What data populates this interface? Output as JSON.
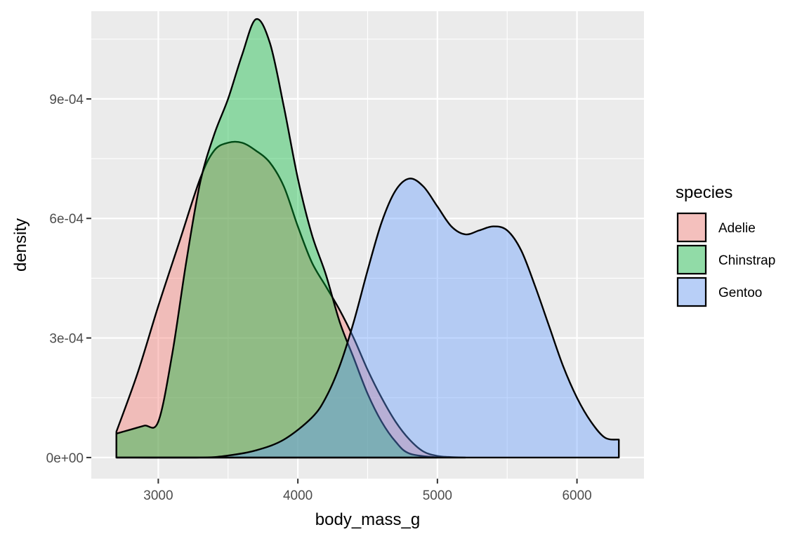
{
  "chart_data": {
    "type": "area",
    "xlabel": "body_mass_g",
    "ylabel": "density",
    "xlim": [
      2520,
      6480
    ],
    "ylim": [
      -5.3e-05,
      0.00112
    ],
    "x_ticks": [
      3000,
      4000,
      5000,
      6000
    ],
    "x_tick_labels": [
      "3000",
      "4000",
      "5000",
      "6000"
    ],
    "y_ticks": [
      0,
      0.0003,
      0.0006,
      0.0009
    ],
    "y_tick_labels": [
      "0e+00",
      "3e-04",
      "6e-04",
      "9e-04"
    ],
    "x_minor_ticks": [
      2500,
      3500,
      4500,
      5500,
      6500
    ],
    "y_minor_ticks": [
      0.00015,
      0.00045,
      0.00075,
      0.00105
    ],
    "grid": true,
    "background": "#EBEBEB",
    "legend": {
      "title": "species",
      "position": "right"
    },
    "series": [
      {
        "name": "Adelie",
        "color": "#F8766D",
        "x": [
          2700,
          2850,
          3000,
          3150,
          3300,
          3400,
          3500,
          3600,
          3700,
          3800,
          3900,
          4000,
          4100,
          4200,
          4300,
          4400,
          4500,
          4600,
          4700,
          4800,
          4900,
          5000,
          5100,
          5200
        ],
        "values": [
          6.5e-05,
          0.00021,
          0.00038,
          0.00054,
          0.0007,
          0.00077,
          0.00079,
          0.00079,
          0.00077,
          0.00074,
          0.00068,
          0.00058,
          0.00049,
          0.00043,
          0.00037,
          0.0003,
          0.00022,
          0.00015,
          9e-05,
          4.5e-05,
          1.5e-05,
          4e-06,
          1e-06,
          0
        ]
      },
      {
        "name": "Chinstrap",
        "color": "#00BA38",
        "x": [
          2700,
          2800,
          2900,
          3000,
          3100,
          3200,
          3300,
          3400,
          3500,
          3600,
          3700,
          3800,
          3900,
          4000,
          4100,
          4200,
          4300,
          4400,
          4500,
          4600,
          4700,
          4800,
          5000
        ],
        "values": [
          6e-05,
          7e-05,
          8e-05,
          9e-05,
          0.00026,
          0.00049,
          0.00069,
          0.00081,
          0.0009,
          0.00101,
          0.0011,
          0.00104,
          0.00088,
          0.0007,
          0.00056,
          0.00046,
          0.00034,
          0.00025,
          0.00016,
          9e-05,
          4e-05,
          1e-05,
          0
        ]
      },
      {
        "name": "Gentoo",
        "color": "#619CFF",
        "x": [
          2700,
          3300,
          3500,
          3700,
          3900,
          4100,
          4200,
          4300,
          4400,
          4500,
          4600,
          4700,
          4800,
          4900,
          5000,
          5100,
          5200,
          5300,
          5400,
          5500,
          5600,
          5700,
          5800,
          5900,
          6000,
          6100,
          6200,
          6300
        ],
        "values": [
          0,
          0,
          5e-06,
          1.8e-05,
          4.5e-05,
          0.0001,
          0.00015,
          0.00023,
          0.00034,
          0.00047,
          0.00059,
          0.00067,
          0.0007,
          0.00068,
          0.00063,
          0.00058,
          0.00056,
          0.00057,
          0.00058,
          0.00057,
          0.00052,
          0.00043,
          0.00033,
          0.00023,
          0.00015,
          9e-05,
          5e-05,
          4.5e-05
        ]
      }
    ]
  }
}
